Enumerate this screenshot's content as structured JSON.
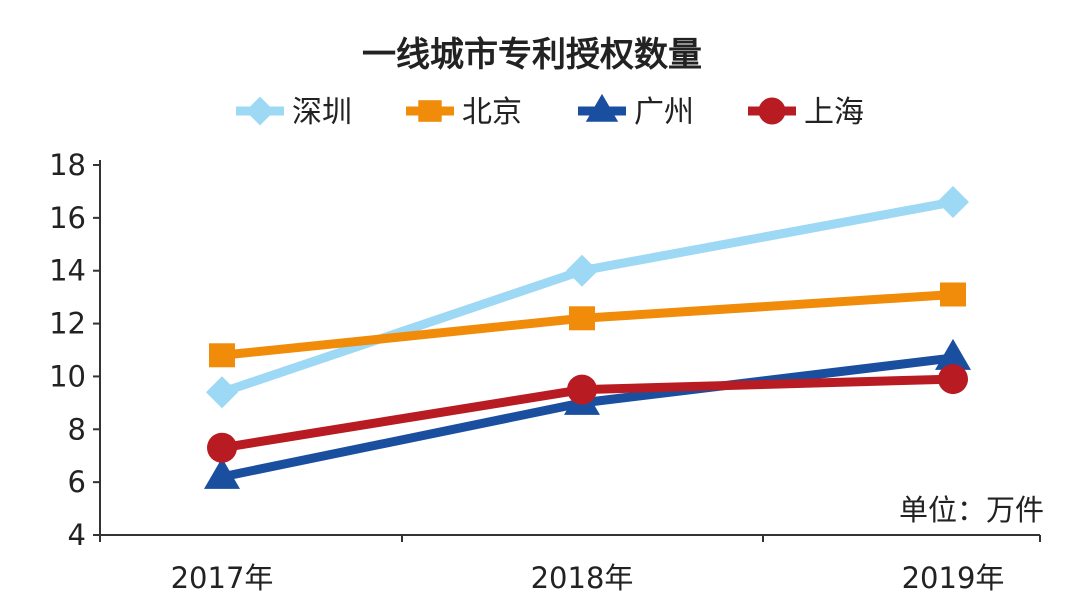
{
  "chart_data": {
    "type": "line",
    "title": "一线城市专利授权数量",
    "unit_label": "单位：万件",
    "categories": [
      "2017年",
      "2018年",
      "2019年"
    ],
    "ylim": [
      4,
      18
    ],
    "yticks": [
      4,
      6,
      8,
      10,
      12,
      14,
      16,
      18
    ],
    "legend_position": "top",
    "grid": false,
    "series": [
      {
        "name": "深圳",
        "marker": "diamond",
        "color": "#9dd8f5",
        "values": [
          9.4,
          14.0,
          16.6
        ]
      },
      {
        "name": "北京",
        "marker": "square",
        "color": "#f08c0a",
        "values": [
          10.8,
          12.2,
          13.1
        ]
      },
      {
        "name": "广州",
        "marker": "triangle",
        "color": "#1a4fa0",
        "values": [
          6.2,
          9.0,
          10.7
        ]
      },
      {
        "name": "上海",
        "marker": "circle",
        "color": "#b81c22",
        "values": [
          7.3,
          9.5,
          9.9
        ]
      }
    ]
  }
}
